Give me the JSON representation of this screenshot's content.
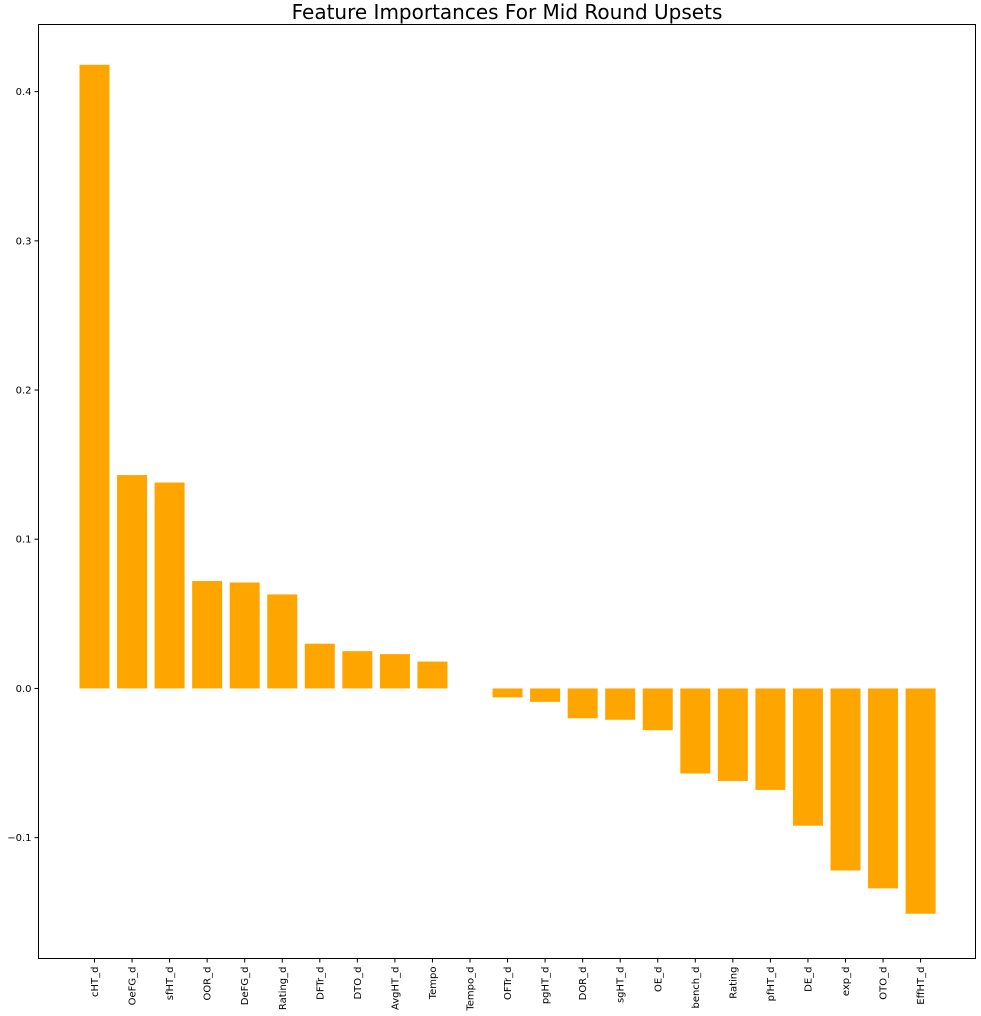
{
  "chart_data": {
    "type": "bar",
    "title": "Feature Importances For Mid Round Upsets",
    "xlabel": "",
    "ylabel": "",
    "categories": [
      "cHT_d",
      "OeFG_d",
      "sfHT_d",
      "OOR_d",
      "DeFG_d",
      "Rating_d",
      "DFTr_d",
      "DTO_d",
      "AvgHT_d",
      "Tempo",
      "Tempo_d",
      "OFTr_d",
      "pgHT_d",
      "DOR_d",
      "sgHT_d",
      "OE_d",
      "bench_d",
      "Rating",
      "pfHT_d",
      "DE_d",
      "exp_d",
      "OTO_d",
      "EffHT_d"
    ],
    "values": [
      0.418,
      0.143,
      0.138,
      0.072,
      0.071,
      0.063,
      0.03,
      0.025,
      0.023,
      0.018,
      0.0,
      -0.006,
      -0.009,
      -0.02,
      -0.021,
      -0.028,
      -0.057,
      -0.062,
      -0.068,
      -0.092,
      -0.122,
      -0.134,
      -0.151
    ],
    "ylim": [
      -0.181,
      0.445
    ],
    "yticks": [
      -0.1,
      0.0,
      0.1,
      0.2,
      0.3,
      0.4
    ],
    "ytick_labels": [
      "−0.1",
      "0.0",
      "0.1",
      "0.2",
      "0.3",
      "0.4"
    ],
    "bar_color": "#ffa500",
    "grid": false,
    "legend": "none"
  }
}
